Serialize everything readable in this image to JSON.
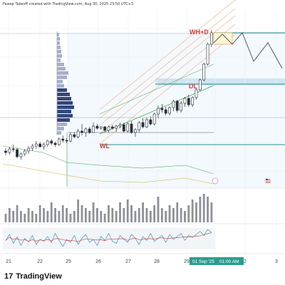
{
  "header": {
    "caption": "Fawep Takeoff created with TradingView.com, Aug 30, 2025 23:50 UTC+3"
  },
  "brand": {
    "logo": "17",
    "name": "TradingView"
  },
  "colors": {
    "candle": "#2a2e39",
    "channel": "#f5b38a",
    "fib_fill": "#dfeef8",
    "level_teal": "#2a8f8f",
    "label_red": "#d23b3b",
    "volume": "#8e9199",
    "osc_line": "#3a94c4",
    "osc_signal": "#d05050",
    "axis_highlight": "#2a9d8f"
  },
  "icons": [
    "tradingview-logo-icon",
    "flag-us-icon",
    "earnings-e-icon"
  ],
  "chart_data": {
    "type": "candlestick",
    "xaxis": {
      "ticks": [
        "21",
        "22",
        "25",
        "26",
        "27",
        "28",
        "29",
        "2",
        "3"
      ],
      "highlight": [
        "01 Sep '25",
        "01:00 AM"
      ]
    },
    "annotations": [
      "WH+D",
      "DL",
      "WL"
    ],
    "series": [
      {
        "name": "price",
        "ohlc": [
          [
            212,
            218,
            208,
            214
          ],
          [
            214,
            217,
            206,
            209
          ],
          [
            209,
            213,
            203,
            210
          ],
          [
            210,
            222,
            207,
            220
          ],
          [
            220,
            224,
            214,
            216
          ],
          [
            216,
            219,
            209,
            212
          ],
          [
            212,
            216,
            205,
            208
          ],
          [
            208,
            212,
            202,
            205
          ],
          [
            205,
            209,
            198,
            202
          ],
          [
            202,
            207,
            199,
            206
          ],
          [
            206,
            210,
            200,
            203
          ],
          [
            203,
            206,
            196,
            198
          ],
          [
            198,
            204,
            195,
            201
          ],
          [
            201,
            206,
            199,
            203
          ],
          [
            203,
            205,
            193,
            195
          ],
          [
            195,
            200,
            190,
            197
          ],
          [
            197,
            201,
            194,
            198
          ],
          [
            198,
            200,
            186,
            189
          ],
          [
            189,
            194,
            186,
            192
          ],
          [
            192,
            194,
            181,
            184
          ],
          [
            184,
            190,
            174,
            186
          ],
          [
            186,
            192,
            179,
            181
          ],
          [
            181,
            188,
            178,
            186
          ],
          [
            186,
            186,
            172,
            177
          ],
          [
            177,
            182,
            174,
            180
          ],
          [
            180,
            182,
            177,
            178
          ],
          [
            178,
            185,
            177,
            183
          ],
          [
            183,
            186,
            176,
            178
          ],
          [
            178,
            182,
            175,
            180
          ],
          [
            180,
            185,
            175,
            177
          ],
          [
            177,
            180,
            172,
            175
          ],
          [
            175,
            186,
            172,
            184
          ],
          [
            184,
            186,
            172,
            174
          ],
          [
            174,
            188,
            170,
            186
          ],
          [
            186,
            192,
            180,
            182
          ],
          [
            182,
            186,
            170,
            172
          ],
          [
            172,
            180,
            166,
            178
          ],
          [
            178,
            180,
            165,
            168
          ],
          [
            168,
            176,
            163,
            174
          ],
          [
            174,
            176,
            158,
            160
          ],
          [
            160,
            166,
            148,
            152
          ],
          [
            152,
            158,
            146,
            154
          ],
          [
            154,
            162,
            150,
            159
          ],
          [
            159,
            162,
            149,
            151
          ],
          [
            151,
            156,
            140,
            142
          ],
          [
            142,
            158,
            140,
            155
          ],
          [
            155,
            158,
            142,
            145
          ],
          [
            145,
            150,
            136,
            138
          ],
          [
            138,
            150,
            133,
            147
          ],
          [
            147,
            150,
            135,
            137
          ],
          [
            137,
            140,
            124,
            126
          ],
          [
            126,
            128,
            110,
            112
          ],
          [
            112,
            114,
            88,
            90
          ],
          [
            90,
            92,
            60,
            62
          ],
          [
            62,
            66,
            42,
            46
          ]
        ]
      },
      {
        "name": "volume",
        "values": [
          3,
          5,
          4,
          6,
          4,
          3,
          5,
          4,
          3,
          6,
          5,
          4,
          7,
          5,
          4,
          6,
          5,
          3,
          4,
          8,
          6,
          5,
          4,
          7,
          5,
          4,
          3,
          6,
          5,
          4,
          7,
          5,
          8,
          6,
          4,
          5,
          7,
          5,
          4,
          6,
          9,
          5,
          4,
          6,
          5,
          7,
          5,
          4,
          6,
          8,
          7,
          9,
          10,
          9,
          7
        ]
      },
      {
        "name": "oscillator",
        "values": [
          48,
          60,
          42,
          55,
          38,
          52,
          45,
          58,
          40,
          50,
          46,
          56,
          44,
          62,
          48,
          36,
          50,
          44,
          58,
          40,
          52,
          60,
          44,
          50,
          38,
          56,
          48,
          62,
          46,
          42,
          58,
          50,
          44,
          60,
          52,
          40,
          56,
          48,
          62,
          46,
          52,
          58,
          44,
          60,
          50,
          56,
          62,
          48,
          58,
          54,
          60,
          66,
          58,
          70,
          64
        ]
      }
    ],
    "grid": true
  }
}
